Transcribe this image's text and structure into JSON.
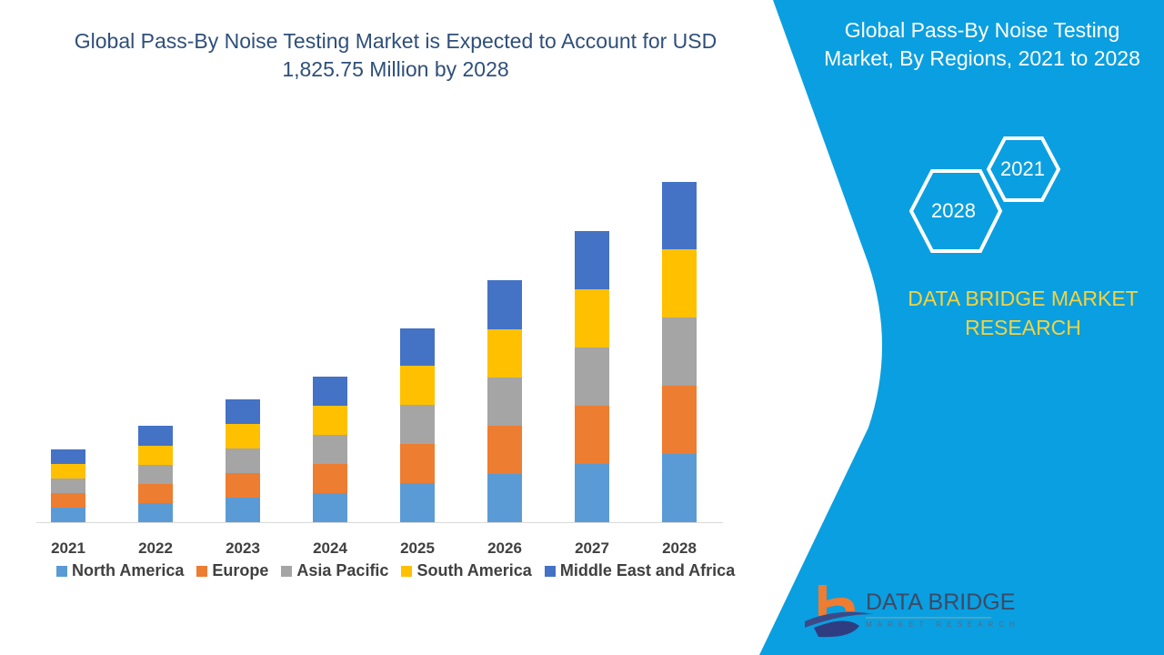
{
  "title": "Global Pass-By Noise Testing Market is Expected to Account for USD 1,825.75 Million by 2028",
  "panel": {
    "title": "Global Pass-By Noise Testing Market, By Regions, 2021 to 2028",
    "hex_top": "2021",
    "hex_bottom": "2028",
    "brand": "DATA BRIDGE MARKET RESEARCH",
    "logo_title": "DATA BRIDGE",
    "logo_subtitle": "MARKET RESEARCH",
    "color": "#0a9fe0",
    "brand_color": "#f5d33f"
  },
  "chart_data": {
    "type": "bar",
    "stacked": true,
    "categories": [
      "2021",
      "2022",
      "2023",
      "2024",
      "2025",
      "2026",
      "2027",
      "2028"
    ],
    "series": [
      {
        "name": "North America",
        "color": "#5b9bd5",
        "values": [
          16,
          21,
          27,
          32,
          43,
          53,
          64,
          75
        ]
      },
      {
        "name": "Europe",
        "color": "#ed7d31",
        "values": [
          16,
          21,
          27,
          32,
          43,
          53,
          64,
          75
        ]
      },
      {
        "name": "Asia Pacific",
        "color": "#a5a5a5",
        "values": [
          16,
          21,
          27,
          32,
          43,
          53,
          64,
          75
        ]
      },
      {
        "name": "South America",
        "color": "#ffc000",
        "values": [
          16,
          21,
          27,
          32,
          43,
          53,
          64,
          75
        ]
      },
      {
        "name": "Middle East and Africa",
        "color": "#4472c4",
        "values": [
          16,
          22,
          27,
          32,
          41,
          54,
          64,
          74
        ]
      }
    ],
    "title": "Global Pass-By Noise Testing Market is Expected to Account for USD 1,825.75 Million by 2028",
    "xlabel": "",
    "ylabel": "",
    "y_axis_shown": false,
    "grid": false,
    "legend": "bottom"
  }
}
